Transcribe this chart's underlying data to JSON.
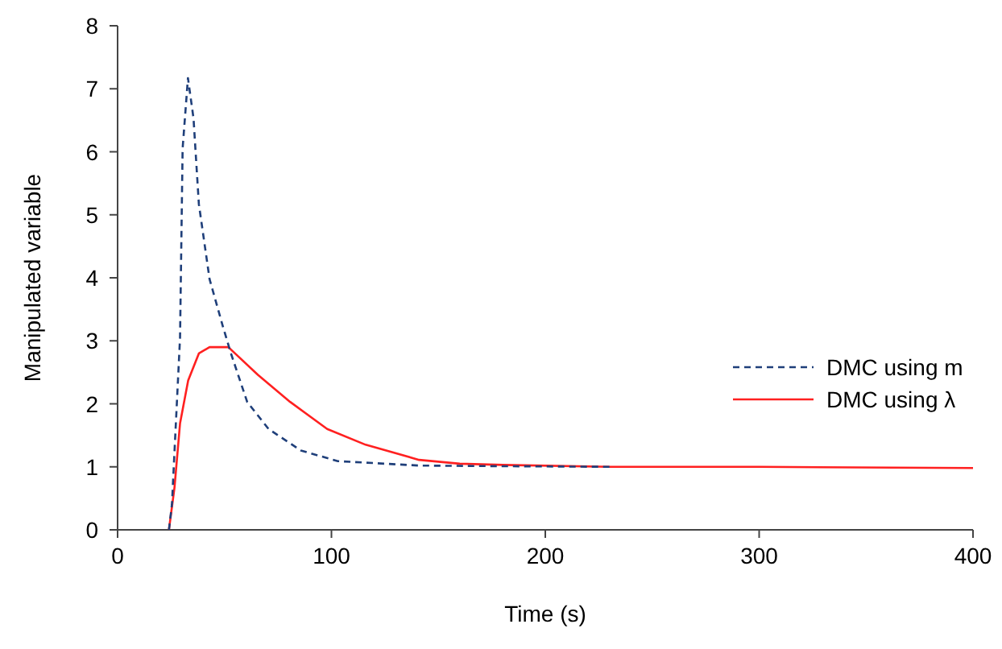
{
  "chart_data": {
    "type": "line",
    "xlabel": "Time (s)",
    "ylabel": "Manipulated variable",
    "xlim": [
      0,
      400
    ],
    "xticks": [
      0,
      100,
      200,
      300,
      400
    ],
    "ylim": [
      0,
      8
    ],
    "yticks": [
      0,
      1,
      2,
      3,
      4,
      5,
      6,
      7,
      8
    ],
    "grid": false,
    "legend": "right",
    "marker": "none",
    "series": [
      {
        "name": "DMC using m",
        "color": "#1f3f7a",
        "line_style": "dashed",
        "x": [
          24,
          25.4,
          29.2,
          30.4,
          32.9,
          35.5,
          38,
          43,
          49.3,
          53,
          60.6,
          70.6,
          85.7,
          103,
          141,
          180,
          230
        ],
        "values": [
          0,
          0.4,
          3.05,
          6.05,
          7.17,
          6.53,
          5.17,
          3.98,
          3.22,
          2.8,
          2.03,
          1.6,
          1.26,
          1.09,
          1.02,
          1.01,
          1.0
        ]
      },
      {
        "name": "DMC using λ",
        "color": "#ff2020",
        "line_style": "solid",
        "x": [
          24,
          26.6,
          29.2,
          33,
          38,
          43,
          51.8,
          65.6,
          80.7,
          98,
          116,
          141,
          160,
          180,
          230,
          300,
          400
        ],
        "values": [
          0,
          0.67,
          1.69,
          2.37,
          2.8,
          2.9,
          2.9,
          2.46,
          2.03,
          1.6,
          1.35,
          1.11,
          1.05,
          1.03,
          1.0,
          1.0,
          0.98
        ]
      }
    ]
  }
}
